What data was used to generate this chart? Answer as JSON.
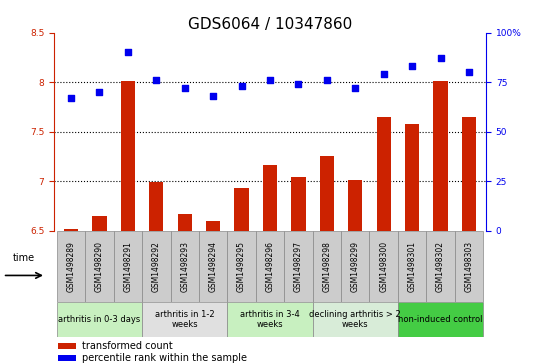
{
  "title": "GDS6064 / 10347860",
  "samples": [
    "GSM1498289",
    "GSM1498290",
    "GSM1498291",
    "GSM1498292",
    "GSM1498293",
    "GSM1498294",
    "GSM1498295",
    "GSM1498296",
    "GSM1498297",
    "GSM1498298",
    "GSM1498299",
    "GSM1498300",
    "GSM1498301",
    "GSM1498302",
    "GSM1498303"
  ],
  "transformed_count": [
    6.52,
    6.65,
    8.01,
    6.99,
    6.67,
    6.6,
    6.93,
    7.16,
    7.04,
    7.25,
    7.01,
    7.65,
    7.58,
    8.01,
    7.65
  ],
  "percentile_rank": [
    67,
    70,
    90,
    76,
    72,
    68,
    73,
    76,
    74,
    76,
    72,
    79,
    83,
    87,
    80
  ],
  "groups": [
    {
      "label": "arthritis in 0-3 days",
      "start": 0,
      "end": 3,
      "color": "#c8f0c0"
    },
    {
      "label": "arthritis in 1-2\nweeks",
      "start": 3,
      "end": 6,
      "color": "#e0e0e0"
    },
    {
      "label": "arthritis in 3-4\nweeks",
      "start": 6,
      "end": 9,
      "color": "#c8f0c0"
    },
    {
      "label": "declining arthritis > 2\nweeks",
      "start": 9,
      "end": 12,
      "color": "#d8ecd8"
    },
    {
      "label": "non-induced control",
      "start": 12,
      "end": 15,
      "color": "#44cc44"
    }
  ],
  "ylim_left": [
    6.5,
    8.5
  ],
  "ylim_right": [
    0,
    100
  ],
  "bar_color": "#cc2200",
  "dot_color": "#0000ee",
  "background_color": "#ffffff",
  "title_fontsize": 11,
  "tick_fontsize": 6.5,
  "sample_bg_color": "#cccccc",
  "sample_border_color": "#888888"
}
